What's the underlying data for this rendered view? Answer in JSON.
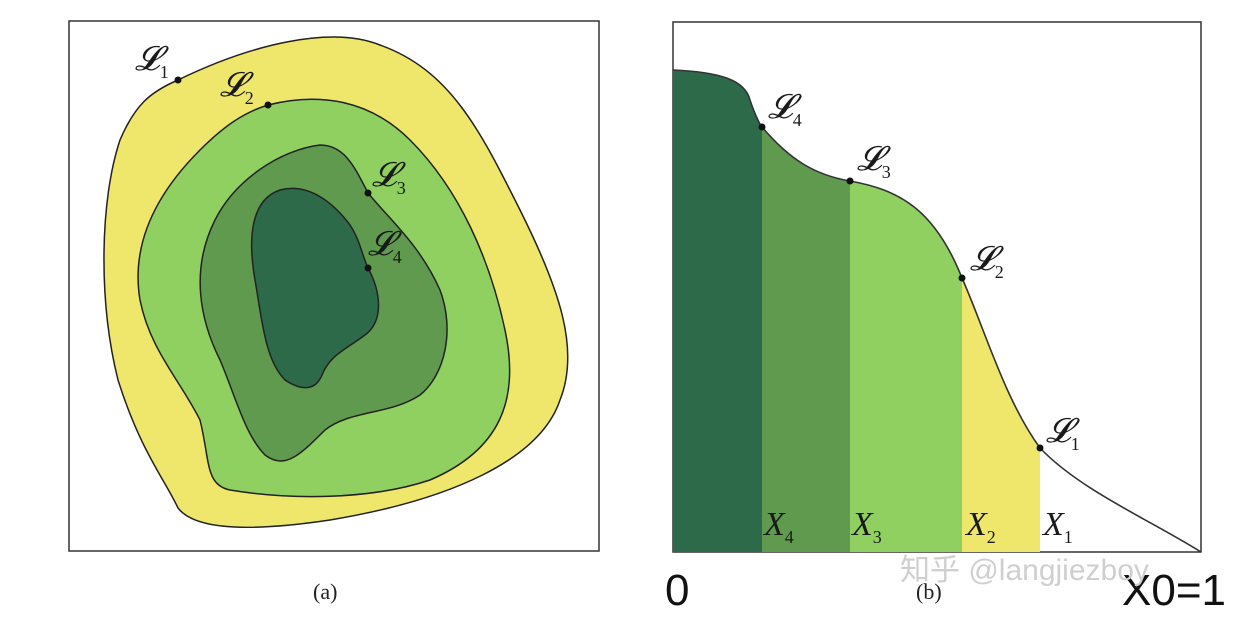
{
  "panel_a": {
    "caption": "(a)",
    "contours": [
      {
        "label": "𝓛",
        "sub": "1",
        "color": "#efe66c"
      },
      {
        "label": "𝓛",
        "sub": "2",
        "color": "#8fd060"
      },
      {
        "label": "𝓛",
        "sub": "3",
        "color": "#5f9a4f"
      },
      {
        "label": "𝓛",
        "sub": "4",
        "color": "#2d6a49"
      }
    ]
  },
  "panel_b": {
    "caption": "(b)",
    "points": [
      {
        "label": "𝓛",
        "sub": "4"
      },
      {
        "label": "𝓛",
        "sub": "3"
      },
      {
        "label": "𝓛",
        "sub": "2"
      },
      {
        "label": "𝓛",
        "sub": "1"
      }
    ],
    "bands": [
      {
        "label": "X",
        "sub": "4",
        "color": "#5f9a4f"
      },
      {
        "label": "X",
        "sub": "3",
        "color": "#8fd060"
      },
      {
        "label": "X",
        "sub": "2",
        "color": "#efe66c"
      },
      {
        "label": "X",
        "sub": "1",
        "color": "#ffffff"
      }
    ],
    "origin_label": "0",
    "end_label": "X0=1"
  },
  "watermark": "知乎 @langjiezboy"
}
